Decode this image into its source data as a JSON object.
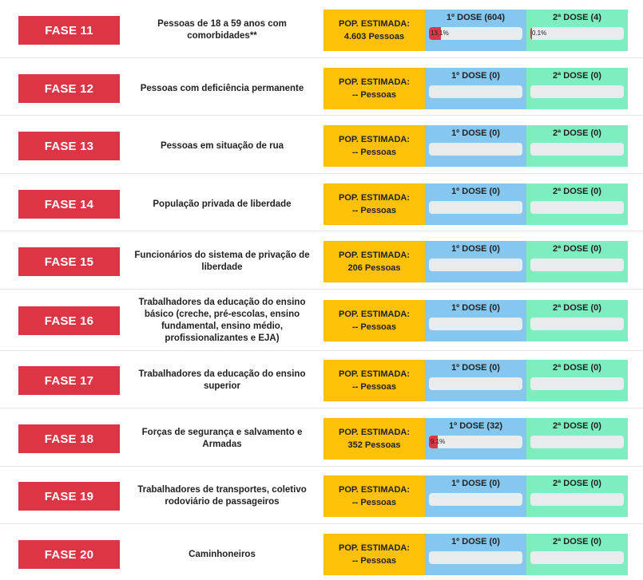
{
  "colors": {
    "fase": "#dc3545",
    "pop": "#ffc107",
    "dose1": "#86c7ef",
    "dose2": "#7eeec1",
    "fill": "#dc3545",
    "track": "#e9ecef"
  },
  "rows": [
    {
      "fase": "FASE 11",
      "desc": "Pessoas de 18 a 59 anos com comorbidades**",
      "pop_label": "POP. ESTIMADA:",
      "pop_value": "4.603 Pessoas",
      "dose1_label": "1º DOSE (604)",
      "dose1_pct": "13.1%",
      "dose1_fraction": 0.131,
      "dose2_label": "2ª DOSE (4)",
      "dose2_pct": "0.1%",
      "dose2_fraction": 0.001
    },
    {
      "fase": "FASE 12",
      "desc": "Pessoas com deficiência permanente",
      "pop_label": "POP. ESTIMADA:",
      "pop_value": "-- Pessoas",
      "dose1_label": "1º DOSE (0)",
      "dose1_pct": "",
      "dose1_fraction": 0,
      "dose2_label": "2ª DOSE (0)",
      "dose2_pct": "",
      "dose2_fraction": 0
    },
    {
      "fase": "FASE 13",
      "desc": "Pessoas em situação de rua",
      "pop_label": "POP. ESTIMADA:",
      "pop_value": "-- Pessoas",
      "dose1_label": "1º DOSE (0)",
      "dose1_pct": "",
      "dose1_fraction": 0,
      "dose2_label": "2ª DOSE (0)",
      "dose2_pct": "",
      "dose2_fraction": 0
    },
    {
      "fase": "FASE 14",
      "desc": "População privada de liberdade",
      "pop_label": "POP. ESTIMADA:",
      "pop_value": "-- Pessoas",
      "dose1_label": "1º DOSE (0)",
      "dose1_pct": "",
      "dose1_fraction": 0,
      "dose2_label": "2ª DOSE (0)",
      "dose2_pct": "",
      "dose2_fraction": 0
    },
    {
      "fase": "FASE 15",
      "desc": "Funcionários do sistema de privação de liberdade",
      "pop_label": "POP. ESTIMADA:",
      "pop_value": "206 Pessoas",
      "dose1_label": "1º DOSE (0)",
      "dose1_pct": "",
      "dose1_fraction": 0,
      "dose2_label": "2ª DOSE (0)",
      "dose2_pct": "",
      "dose2_fraction": 0
    },
    {
      "fase": "FASE 16",
      "desc": "Trabalhadores da educação do ensino básico (creche, pré-escolas, ensino fundamental, ensino médio, profissionalizantes e EJA)",
      "pop_label": "POP. ESTIMADA:",
      "pop_value": "-- Pessoas",
      "dose1_label": "1º DOSE (0)",
      "dose1_pct": "",
      "dose1_fraction": 0,
      "dose2_label": "2ª DOSE (0)",
      "dose2_pct": "",
      "dose2_fraction": 0
    },
    {
      "fase": "FASE 17",
      "desc": "Trabalhadores da educação do ensino superior",
      "pop_label": "POP. ESTIMADA:",
      "pop_value": "-- Pessoas",
      "dose1_label": "1º DOSE (0)",
      "dose1_pct": "",
      "dose1_fraction": 0,
      "dose2_label": "2ª DOSE (0)",
      "dose2_pct": "",
      "dose2_fraction": 0
    },
    {
      "fase": "FASE 18",
      "desc": "Forças de segurança e salvamento e Armadas",
      "pop_label": "POP. ESTIMADA:",
      "pop_value": "352 Pessoas",
      "dose1_label": "1º DOSE (32)",
      "dose1_pct": "9.1%",
      "dose1_fraction": 0.091,
      "dose2_label": "2ª DOSE (0)",
      "dose2_pct": "",
      "dose2_fraction": 0
    },
    {
      "fase": "FASE 19",
      "desc": "Trabalhadores de transportes, coletivo rodoviário de passageiros",
      "pop_label": "POP. ESTIMADA:",
      "pop_value": "-- Pessoas",
      "dose1_label": "1º DOSE (0)",
      "dose1_pct": "",
      "dose1_fraction": 0,
      "dose2_label": "2ª DOSE (0)",
      "dose2_pct": "",
      "dose2_fraction": 0
    },
    {
      "fase": "FASE 20",
      "desc": "Caminhoneiros",
      "pop_label": "POP. ESTIMADA:",
      "pop_value": "-- Pessoas",
      "dose1_label": "1º DOSE (0)",
      "dose1_pct": "",
      "dose1_fraction": 0,
      "dose2_label": "2ª DOSE (0)",
      "dose2_pct": "",
      "dose2_fraction": 0
    }
  ]
}
